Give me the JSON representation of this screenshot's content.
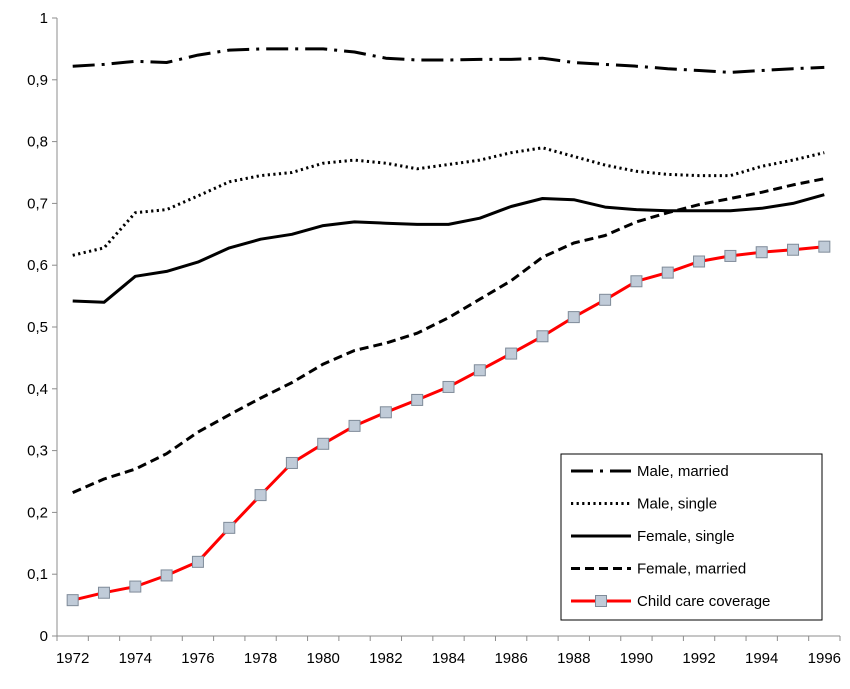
{
  "chart_data": {
    "type": "line",
    "title": "",
    "xlabel": "",
    "ylabel": "",
    "x": [
      1972,
      1973,
      1974,
      1975,
      1976,
      1977,
      1978,
      1979,
      1980,
      1981,
      1982,
      1983,
      1984,
      1985,
      1986,
      1987,
      1988,
      1989,
      1990,
      1991,
      1992,
      1993,
      1994,
      1995,
      1996
    ],
    "xlim": [
      1971.5,
      1996.5
    ],
    "ylim": [
      0,
      1
    ],
    "x_ticks": [
      1972,
      1974,
      1976,
      1978,
      1980,
      1982,
      1984,
      1986,
      1988,
      1990,
      1992,
      1994,
      1996
    ],
    "x_tick_labels": [
      "1972",
      "1974",
      "1976",
      "1978",
      "1980",
      "1982",
      "1984",
      "1986",
      "1988",
      "1990",
      "1992",
      "1994",
      "1996"
    ],
    "y_ticks": [
      0,
      0.1,
      0.2,
      0.3,
      0.4,
      0.5,
      0.6,
      0.7,
      0.8,
      0.9,
      1
    ],
    "y_tick_labels": [
      "0",
      "0,1",
      "0,2",
      "0,3",
      "0,4",
      "0,5",
      "0,6",
      "0,7",
      "0,8",
      "0,9",
      "1"
    ],
    "grid": false,
    "legend_position": "bottom-right",
    "series": [
      {
        "name": "Male, married",
        "style": "dashdot",
        "color": "#000000",
        "values": [
          0.922,
          0.925,
          0.93,
          0.928,
          0.94,
          0.948,
          0.95,
          0.95,
          0.95,
          0.945,
          0.935,
          0.932,
          0.932,
          0.933,
          0.933,
          0.935,
          0.928,
          0.925,
          0.922,
          0.918,
          0.915,
          0.912,
          0.915,
          0.918,
          0.92
        ]
      },
      {
        "name": "Male, single",
        "style": "dotted",
        "color": "#000000",
        "values": [
          0.616,
          0.628,
          0.685,
          0.69,
          0.712,
          0.735,
          0.745,
          0.75,
          0.765,
          0.77,
          0.765,
          0.756,
          0.763,
          0.77,
          0.782,
          0.79,
          0.776,
          0.762,
          0.752,
          0.747,
          0.745,
          0.745,
          0.76,
          0.77,
          0.782
        ]
      },
      {
        "name": "Female, single",
        "style": "solid",
        "color": "#000000",
        "values": [
          0.542,
          0.54,
          0.582,
          0.59,
          0.605,
          0.628,
          0.642,
          0.65,
          0.664,
          0.67,
          0.668,
          0.666,
          0.666,
          0.676,
          0.695,
          0.708,
          0.706,
          0.694,
          0.69,
          0.688,
          0.688,
          0.688,
          0.692,
          0.7,
          0.714
        ]
      },
      {
        "name": "Female, married",
        "style": "dashed",
        "color": "#000000",
        "values": [
          0.232,
          0.254,
          0.27,
          0.295,
          0.33,
          0.358,
          0.385,
          0.41,
          0.44,
          0.462,
          0.474,
          0.49,
          0.515,
          0.545,
          0.575,
          0.613,
          0.636,
          0.648,
          0.67,
          0.685,
          0.698,
          0.708,
          0.718,
          0.73,
          0.74
        ]
      },
      {
        "name": "Child care coverage",
        "style": "solid-markers",
        "color": "#ff0000",
        "marker_fill": "#c0cbd8",
        "marker_stroke": "#7f8b99",
        "values": [
          0.058,
          0.07,
          0.08,
          0.098,
          0.12,
          0.175,
          0.228,
          0.28,
          0.311,
          0.34,
          0.362,
          0.382,
          0.403,
          0.43,
          0.457,
          0.485,
          0.516,
          0.544,
          0.574,
          0.588,
          0.606,
          0.615,
          0.621,
          0.625,
          0.63
        ]
      }
    ]
  }
}
